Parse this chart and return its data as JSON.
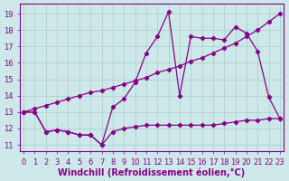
{
  "background_color": "#cce8e8",
  "line_color": "#880088",
  "grid_color": "#aacccc",
  "xlabel": "Windchill (Refroidissement éolien,°C)",
  "xlabel_fontsize": 7.0,
  "yticks": [
    11,
    12,
    13,
    14,
    15,
    16,
    17,
    18,
    19
  ],
  "xticks": [
    0,
    1,
    2,
    3,
    4,
    5,
    6,
    7,
    8,
    9,
    10,
    11,
    12,
    13,
    14,
    15,
    16,
    17,
    18,
    19,
    20,
    21,
    22,
    23
  ],
  "ylim": [
    10.6,
    19.6
  ],
  "xlim": [
    -0.3,
    23.3
  ],
  "series1_x": [
    0,
    1,
    2,
    3,
    4,
    5,
    6,
    7,
    8,
    9,
    10,
    11,
    12,
    13,
    14,
    15,
    16,
    17,
    18,
    19,
    20,
    21,
    22,
    23
  ],
  "series1_y": [
    13.0,
    13.0,
    11.8,
    11.9,
    11.8,
    11.6,
    11.6,
    11.0,
    11.8,
    12.0,
    12.1,
    12.2,
    12.2,
    12.2,
    12.2,
    12.2,
    12.2,
    12.2,
    12.3,
    12.4,
    12.5,
    12.5,
    12.6,
    12.6
  ],
  "series2_x": [
    0,
    1,
    2,
    3,
    4,
    5,
    6,
    7,
    8,
    9,
    10,
    11,
    12,
    13,
    14,
    15,
    16,
    17,
    18,
    19,
    20,
    21,
    22,
    23
  ],
  "series2_y": [
    13.0,
    13.2,
    13.4,
    13.6,
    13.8,
    14.0,
    14.2,
    14.3,
    14.5,
    14.7,
    14.9,
    15.1,
    15.4,
    15.6,
    15.8,
    16.1,
    16.3,
    16.6,
    16.9,
    17.2,
    17.6,
    18.0,
    18.5,
    19.0
  ],
  "series3_x": [
    0,
    1,
    2,
    3,
    4,
    5,
    6,
    7,
    8,
    9,
    10,
    11,
    12,
    13,
    14,
    15,
    16,
    17,
    18,
    19,
    20,
    21,
    22,
    23
  ],
  "series3_y": [
    13.0,
    13.0,
    11.8,
    11.9,
    11.8,
    11.6,
    11.6,
    11.0,
    13.3,
    13.8,
    14.8,
    16.6,
    17.6,
    19.1,
    14.0,
    17.6,
    17.5,
    17.5,
    17.4,
    18.2,
    17.8,
    16.7,
    13.9,
    12.6
  ],
  "tick_fontsize": 6,
  "linewidth": 0.9,
  "marker": "D",
  "markersize": 2.2
}
